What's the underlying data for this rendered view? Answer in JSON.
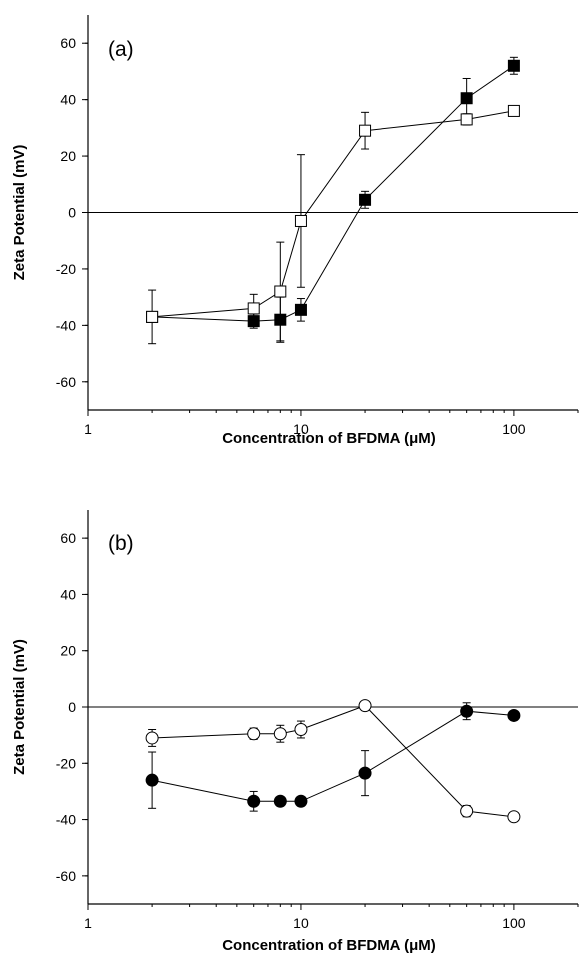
{
  "chart_data": [
    {
      "type": "scatter",
      "panel_label": "(a)",
      "xlabel": "Concentration of BFDMA (μM)",
      "ylabel": "Zeta Potential (mV)",
      "xscale": "log",
      "xlim": [
        1,
        200
      ],
      "ylim": [
        -70,
        70
      ],
      "x_ticks": [
        1,
        10,
        100
      ],
      "x_tick_labels": [
        "1",
        "10",
        "100"
      ],
      "y_ticks": [
        -60,
        -40,
        -20,
        0,
        20,
        40,
        60
      ],
      "y_tick_labels": [
        "-60",
        "-40",
        "-20",
        "0",
        "20",
        "40",
        "60"
      ],
      "zero_line": true,
      "grid": false,
      "series": [
        {
          "marker": "square",
          "fill": "#000000",
          "x": [
            2,
            6,
            8,
            10,
            20,
            60,
            100
          ],
          "y": [
            -37,
            -38.5,
            -38,
            -34.5,
            4.5,
            40.5,
            52
          ],
          "err": [
            1.5,
            2.5,
            8,
            4,
            3,
            7,
            3
          ]
        },
        {
          "marker": "square",
          "fill": "#ffffff",
          "x": [
            2,
            6,
            8,
            10,
            20,
            60,
            100
          ],
          "y": [
            -37,
            -34,
            -28,
            -3,
            29,
            33,
            36
          ],
          "err": [
            9.5,
            5,
            17.5,
            23.5,
            6.5,
            2,
            1.5
          ]
        }
      ]
    },
    {
      "type": "scatter",
      "panel_label": "(b)",
      "xlabel": "Concentration of BFDMA (μM)",
      "ylabel": "Zeta Potential (mV)",
      "xscale": "log",
      "xlim": [
        1,
        200
      ],
      "ylim": [
        -70,
        70
      ],
      "x_ticks": [
        1,
        10,
        100
      ],
      "x_tick_labels": [
        "1",
        "10",
        "100"
      ],
      "y_ticks": [
        -60,
        -40,
        -20,
        0,
        20,
        40,
        60
      ],
      "y_tick_labels": [
        "-60",
        "-40",
        "-20",
        "0",
        "20",
        "40",
        "60"
      ],
      "zero_line": true,
      "grid": false,
      "series": [
        {
          "marker": "circle",
          "fill": "#000000",
          "x": [
            2,
            6,
            8,
            10,
            20,
            60,
            100
          ],
          "y": [
            -26,
            -33.5,
            -33.5,
            -33.5,
            -23.5,
            -1.5,
            -3
          ],
          "err": [
            10,
            3.5,
            1,
            1,
            8,
            3,
            1
          ]
        },
        {
          "marker": "circle",
          "fill": "#ffffff",
          "x": [
            2,
            6,
            8,
            10,
            20,
            60,
            100
          ],
          "y": [
            -11,
            -9.5,
            -9.5,
            -8,
            0.5,
            -37,
            -39
          ],
          "err": [
            3,
            2,
            3,
            3,
            1,
            2,
            1.5
          ]
        }
      ]
    }
  ]
}
